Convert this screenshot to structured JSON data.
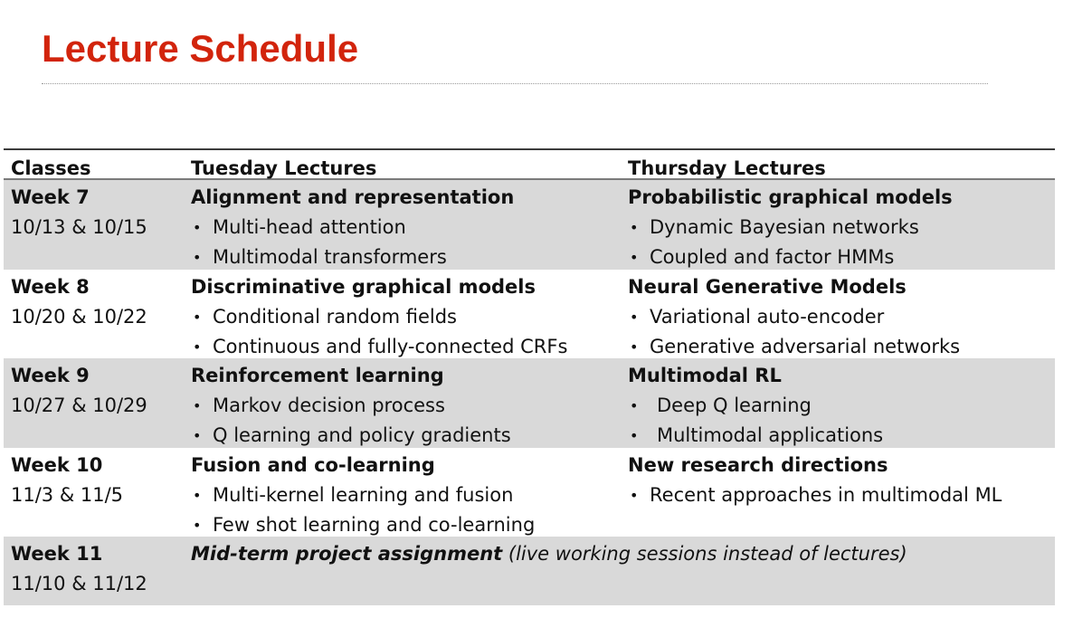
{
  "title": "Lecture Schedule",
  "table": {
    "headers": {
      "classes": "Classes",
      "tuesday": "Tuesday Lectures",
      "thursday": "Thursday Lectures"
    },
    "rows": [
      {
        "week": "Week 7",
        "dates": "10/13 & 10/15",
        "tuesday": {
          "title": "Alignment and representation",
          "bullets": [
            "Multi-head attention",
            "Multimodal transformers"
          ]
        },
        "thursday": {
          "title": "Probabilistic graphical models",
          "bullets": [
            "Dynamic Bayesian networks",
            "Coupled and factor HMMs"
          ]
        }
      },
      {
        "week": "Week 8",
        "dates": "10/20 & 10/22",
        "tuesday": {
          "title": "Discriminative graphical models",
          "bullets": [
            "Conditional random fields",
            "Continuous and fully-connected CRFs"
          ]
        },
        "thursday": {
          "title": "Neural Generative Models",
          "bullets": [
            "Variational auto-encoder",
            "Generative adversarial networks"
          ]
        }
      },
      {
        "week": "Week 9",
        "dates": "10/27 & 10/29",
        "tuesday": {
          "title": "Reinforcement learning",
          "bullets": [
            "Markov decision process",
            "Q learning and policy gradients"
          ]
        },
        "thursday": {
          "title": "Multimodal RL",
          "bullets": [
            "Deep Q learning",
            "Multimodal applications"
          ]
        }
      },
      {
        "week": "Week 10",
        "dates": "11/3 & 11/5",
        "tuesday": {
          "title": "Fusion and co-learning",
          "bullets": [
            "Multi-kernel learning and fusion",
            "Few shot learning and co-learning"
          ]
        },
        "thursday": {
          "title": "New research directions",
          "bullets": [
            "Recent approaches in multimodal ML"
          ]
        }
      },
      {
        "week": "Week 11",
        "dates": "11/10 & 11/12",
        "note_bold": "Mid-term project assignment",
        "note_rest": " (live working sessions instead of lectures)"
      }
    ]
  },
  "colors": {
    "title": "#d2240c",
    "row_shade": "#d9d9d9"
  },
  "icons": {
    "bullet": "•"
  }
}
